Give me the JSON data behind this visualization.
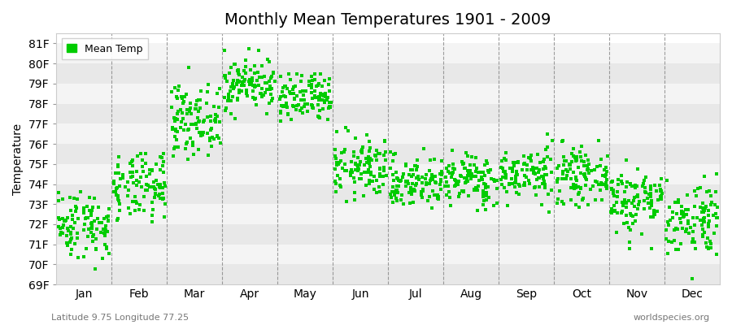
{
  "title": "Monthly Mean Temperatures 1901 - 2009",
  "ylabel": "Temperature",
  "xlabel_bottom_left": "Latitude 9.75 Longitude 77.25",
  "xlabel_bottom_right": "worldspecies.org",
  "dot_color": "#00CC00",
  "bg_color": "#FFFFFF",
  "plot_bg_color": "#FFFFFF",
  "stripe_color_dark": "#E8E8E8",
  "stripe_color_light": "#F4F4F4",
  "legend_label": "Mean Temp",
  "ylim": [
    69,
    81.5
  ],
  "yticks": [
    69,
    70,
    71,
    72,
    73,
    74,
    75,
    76,
    77,
    78,
    79,
    80,
    81
  ],
  "ytick_labels": [
    "69F",
    "70F",
    "71F",
    "72F",
    "73F",
    "74F",
    "75F",
    "76F",
    "77F",
    "78F",
    "79F",
    "80F",
    "81F"
  ],
  "months": [
    "Jan",
    "Feb",
    "Mar",
    "Apr",
    "May",
    "Jun",
    "Jul",
    "Aug",
    "Sep",
    "Oct",
    "Nov",
    "Dec"
  ],
  "n_years": 109,
  "monthly_means": [
    72.0,
    73.8,
    77.2,
    79.0,
    78.2,
    74.8,
    74.1,
    74.2,
    74.5,
    74.4,
    73.2,
    72.3
  ],
  "monthly_stds": [
    0.85,
    0.85,
    0.85,
    0.65,
    0.65,
    0.75,
    0.65,
    0.65,
    0.65,
    0.65,
    0.85,
    0.95
  ],
  "monthly_mins": [
    69.2,
    71.2,
    75.0,
    77.0,
    76.0,
    73.0,
    72.5,
    72.5,
    72.5,
    72.5,
    70.8,
    69.3
  ],
  "monthly_maxs": [
    73.8,
    75.5,
    80.2,
    81.3,
    79.5,
    76.8,
    76.5,
    76.0,
    76.5,
    76.5,
    75.2,
    74.5
  ],
  "title_fontsize": 14,
  "axis_fontsize": 10,
  "tick_fontsize": 10,
  "marker_size": 12,
  "seed": 42,
  "dashed_color": "#777777"
}
